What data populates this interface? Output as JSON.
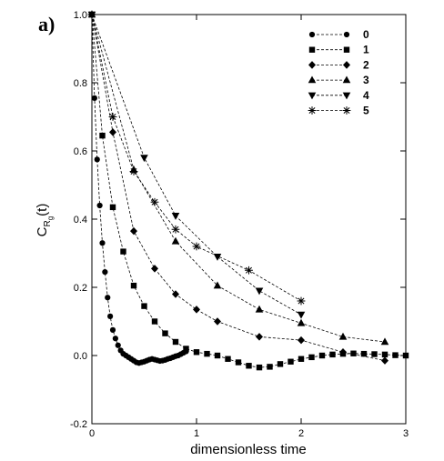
{
  "panel_label": "a)",
  "chart_data": {
    "type": "line",
    "xlabel": "dimensionless time",
    "ylabel": "C_{R_g}(t)",
    "ylabel_parts": {
      "main": "C",
      "sub1": "R",
      "sub2": "g",
      "arg": "(t)"
    },
    "xlim": [
      0,
      3
    ],
    "ylim": [
      -0.2,
      1.0
    ],
    "xticks": [
      0,
      1,
      2,
      3
    ],
    "xtick_labels": [
      "0",
      "1",
      "2",
      "3"
    ],
    "yticks": [
      -0.2,
      0.0,
      0.2,
      0.4,
      0.6,
      0.8,
      1.0
    ],
    "ytick_labels": [
      "-0.2",
      "0.0",
      "0.2",
      "0.4",
      "0.6",
      "0.8",
      "1.0"
    ],
    "grid": false,
    "legend_position": "top-right",
    "line_style": "dashed",
    "series": [
      {
        "name": "0",
        "marker": "circle",
        "x": [
          0,
          0.025,
          0.05,
          0.075,
          0.1,
          0.125,
          0.15,
          0.175,
          0.2,
          0.225,
          0.25,
          0.275,
          0.3,
          0.325,
          0.35,
          0.375,
          0.4,
          0.425,
          0.45,
          0.475,
          0.5,
          0.525,
          0.55,
          0.575,
          0.6,
          0.625,
          0.65,
          0.675,
          0.7,
          0.725,
          0.75,
          0.775,
          0.8,
          0.825,
          0.85,
          0.875,
          0.9
        ],
        "y": [
          1.0,
          0.755,
          0.575,
          0.44,
          0.33,
          0.245,
          0.17,
          0.115,
          0.075,
          0.05,
          0.03,
          0.015,
          0.005,
          0.0,
          -0.005,
          -0.01,
          -0.015,
          -0.02,
          -0.022,
          -0.02,
          -0.018,
          -0.015,
          -0.012,
          -0.01,
          -0.012,
          -0.014,
          -0.016,
          -0.015,
          -0.013,
          -0.01,
          -0.008,
          -0.005,
          -0.002,
          0.0,
          0.004,
          0.008,
          0.012
        ]
      },
      {
        "name": "1",
        "marker": "square",
        "x": [
          0,
          0.1,
          0.2,
          0.3,
          0.4,
          0.5,
          0.6,
          0.7,
          0.8,
          0.9,
          1.0,
          1.1,
          1.2,
          1.3,
          1.4,
          1.5,
          1.6,
          1.7,
          1.8,
          1.9,
          2.0,
          2.1,
          2.2,
          2.3,
          2.4,
          2.5,
          2.6,
          2.7,
          2.8,
          2.9,
          3.0
        ],
        "y": [
          1.0,
          0.645,
          0.435,
          0.305,
          0.205,
          0.145,
          0.1,
          0.065,
          0.04,
          0.02,
          0.01,
          0.005,
          0.0,
          -0.01,
          -0.02,
          -0.03,
          -0.035,
          -0.033,
          -0.025,
          -0.018,
          -0.01,
          -0.005,
          0.0,
          0.003,
          0.005,
          0.006,
          0.005,
          0.004,
          0.003,
          0.001,
          0.0
        ]
      },
      {
        "name": "2",
        "marker": "diamond",
        "x": [
          0,
          0.2,
          0.4,
          0.6,
          0.8,
          1.0,
          1.2,
          1.6,
          2.0,
          2.4,
          2.8
        ],
        "y": [
          1.0,
          0.655,
          0.365,
          0.255,
          0.18,
          0.135,
          0.1,
          0.055,
          0.045,
          0.01,
          -0.015
        ]
      },
      {
        "name": "3",
        "marker": "triangle-up",
        "x": [
          0,
          0.4,
          0.8,
          1.2,
          1.6,
          2.0,
          2.4,
          2.8
        ],
        "y": [
          1.0,
          0.545,
          0.335,
          0.205,
          0.135,
          0.095,
          0.055,
          0.04
        ]
      },
      {
        "name": "4",
        "marker": "triangle-down",
        "x": [
          0,
          0.5,
          0.8,
          1.2,
          1.6,
          2.0
        ],
        "y": [
          1.0,
          0.58,
          0.41,
          0.29,
          0.19,
          0.12
        ]
      },
      {
        "name": "5",
        "marker": "asterisk",
        "x": [
          0,
          0.2,
          0.4,
          0.6,
          0.8,
          1.0,
          1.5,
          2.0
        ],
        "y": [
          1.0,
          0.7,
          0.54,
          0.45,
          0.37,
          0.32,
          0.25,
          0.16
        ]
      }
    ]
  }
}
